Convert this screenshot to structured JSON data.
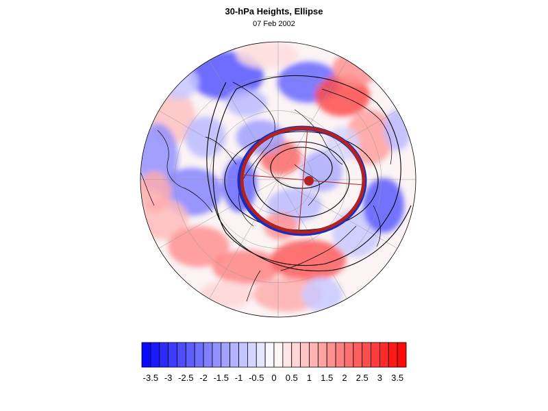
{
  "title": "30-hPa Heights, Ellipse",
  "subtitle": "07 Feb 2002",
  "colorbar": {
    "labels": [
      "-3.5",
      "-3",
      "-2.5",
      "-2",
      "-1.5",
      "-1",
      "-0.5",
      "0",
      "0.5",
      "1",
      "1.5",
      "2",
      "2.5",
      "3",
      "3.5"
    ],
    "min": -3.75,
    "max": 3.75,
    "step": 0.25,
    "negative_color": "#0000ff",
    "positive_color": "#ff0000",
    "neutral_color": "#ffffff"
  },
  "map": {
    "projection": "north polar stereographic",
    "field": "normalized 30-hPa height anomaly",
    "ellipse_color": "#b22222",
    "ellipse_edge_color": "#1a2bbf",
    "height_contour_color": "#000000",
    "coastline_color": "#000000",
    "grid_color": "#888888"
  }
}
